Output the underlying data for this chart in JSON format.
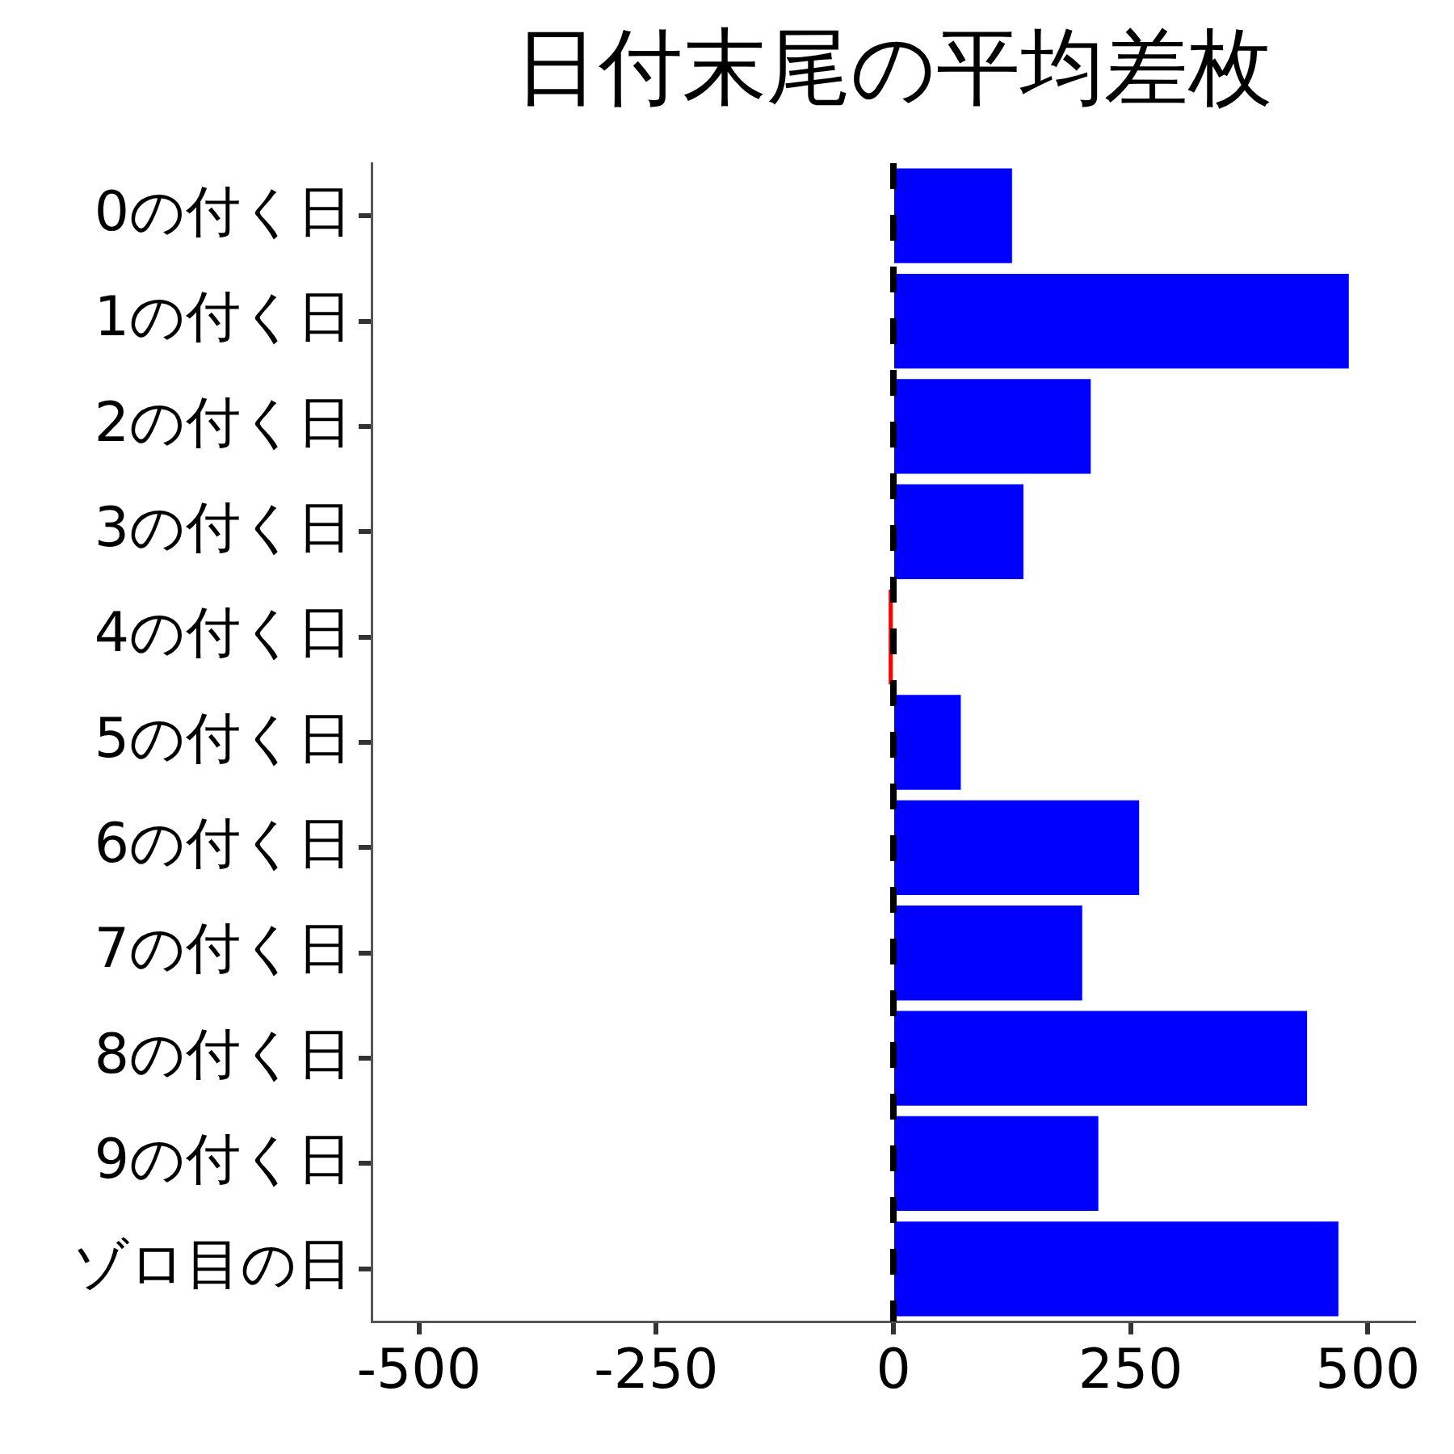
{
  "chart_data": {
    "type": "bar",
    "title": "日付末尾の平均差枚",
    "orientation": "horizontal",
    "categories": [
      "0の付く日",
      "1の付く日",
      "2の付く日",
      "3の付く日",
      "4の付く日",
      "5の付く日",
      "6の付く日",
      "7の付く日",
      "8の付く日",
      "9の付く日",
      "ゾロ目の日"
    ],
    "values": [
      125,
      480,
      208,
      137,
      -5,
      71,
      259,
      199,
      436,
      216,
      469
    ],
    "colors": [
      "#0000ff",
      "#0000ff",
      "#0000ff",
      "#0000ff",
      "#ff0000",
      "#0000ff",
      "#0000ff",
      "#0000ff",
      "#0000ff",
      "#0000ff",
      "#0000ff"
    ],
    "xlim": [
      -550,
      550
    ],
    "xticks": [
      -500,
      -250,
      0,
      250,
      500
    ],
    "ref_lines": [
      {
        "axis": "x",
        "value": 0,
        "color": "#000000",
        "line_style": "dashed"
      }
    ]
  }
}
